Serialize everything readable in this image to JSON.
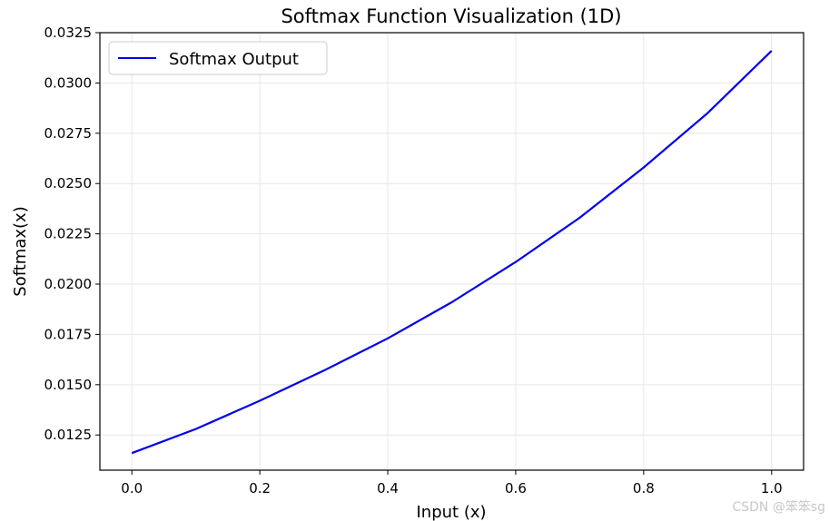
{
  "chart_data": {
    "type": "line",
    "title": "Softmax Function Visualization (1D)",
    "xlabel": "Input (x)",
    "ylabel": "Softmax(x)",
    "xlim": [
      -0.05,
      1.05
    ],
    "ylim": [
      0.01075,
      0.0325
    ],
    "xticks": [
      0.0,
      0.2,
      0.4,
      0.6,
      0.8,
      1.0
    ],
    "xtick_labels": [
      "0.0",
      "0.2",
      "0.4",
      "0.6",
      "0.8",
      "1.0"
    ],
    "yticks": [
      0.0125,
      0.015,
      0.0175,
      0.02,
      0.0225,
      0.025,
      0.0275,
      0.03,
      0.0325
    ],
    "ytick_labels": [
      "0.0125",
      "0.0150",
      "0.0175",
      "0.0200",
      "0.0225",
      "0.0250",
      "0.0275",
      "0.0300",
      "0.0325"
    ],
    "grid": true,
    "legend_position": "top-left",
    "series": [
      {
        "name": "Softmax Output",
        "color": "#0000ee",
        "x": [
          0.0,
          0.1,
          0.2,
          0.3,
          0.4,
          0.5,
          0.6,
          0.7,
          0.8,
          0.9,
          1.0
        ],
        "y": [
          0.0116,
          0.0128,
          0.0142,
          0.0157,
          0.0173,
          0.0191,
          0.0211,
          0.0233,
          0.0258,
          0.0285,
          0.0316
        ]
      }
    ]
  },
  "watermark": "CSDN @笨笨sg"
}
